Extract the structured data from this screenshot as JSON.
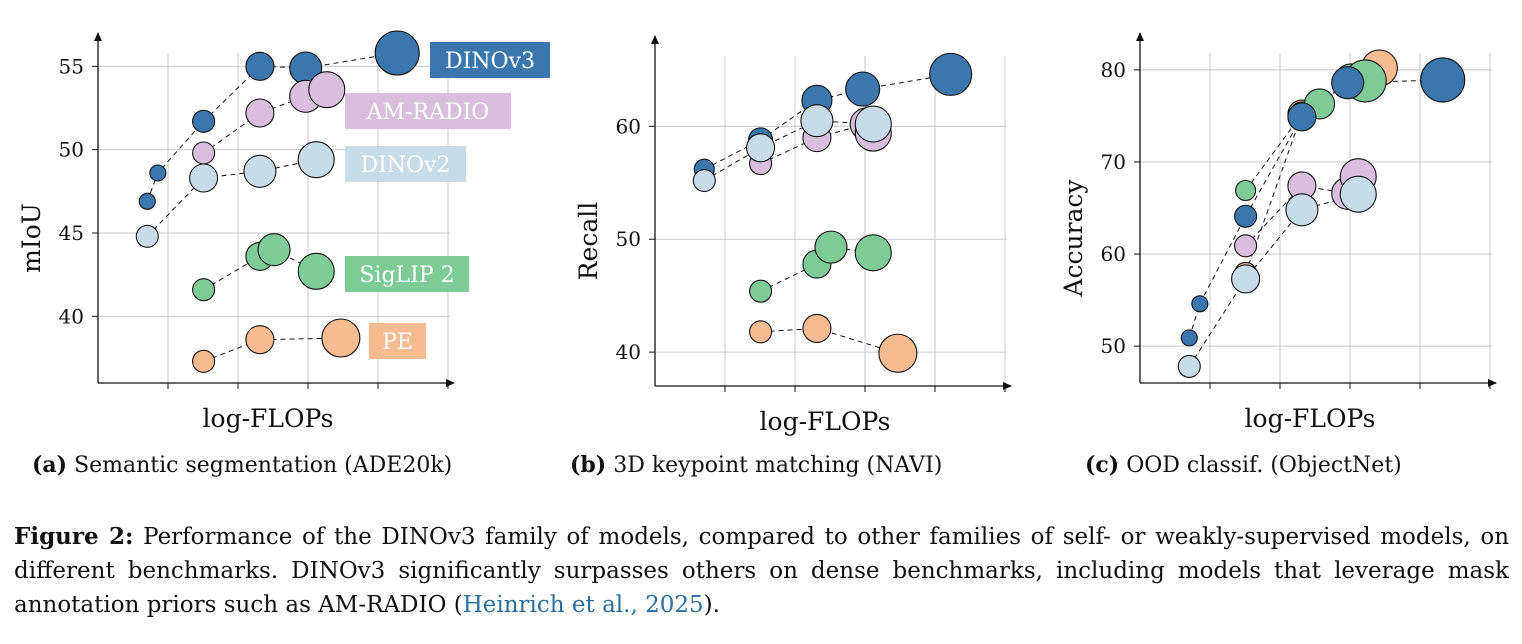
{
  "colors": {
    "DINOv3": "#3b77ad",
    "AM-RADIO": "#d9bedd",
    "DINOv2": "#c8dbe8",
    "SigLIP 2": "#7ecb98",
    "PE": "#f7bb91",
    "grid": "#c8c8c8",
    "cite": "#2a6fa0"
  },
  "chart_data": [
    {
      "type": "scatter",
      "xlabel": "log-FLOPs",
      "ylabel": "mIoU",
      "yticks": [
        40,
        45,
        50,
        55
      ],
      "ylim": [
        36,
        57
      ],
      "xlim": [
        0,
        5
      ],
      "grid": true,
      "series": [
        {
          "name": "DINOv3",
          "label_color": "#3b77ad",
          "label_text_color": "#ffffff",
          "points": [
            [
              0.7,
              46.9
            ],
            [
              0.85,
              48.6
            ],
            [
              1.5,
              51.7
            ],
            [
              2.3,
              55.0
            ],
            [
              2.95,
              54.9
            ],
            [
              4.25,
              55.8
            ]
          ]
        },
        {
          "name": "AM-RADIO",
          "label_color": "#d9bedd",
          "label_text_color": "#ffffff",
          "points": [
            [
              1.5,
              49.8
            ],
            [
              2.3,
              52.2
            ],
            [
              2.95,
              53.2
            ],
            [
              3.25,
              53.6
            ]
          ]
        },
        {
          "name": "DINOv2",
          "label_color": "#c8dbe8",
          "label_text_color": "#ffffff",
          "points": [
            [
              0.7,
              44.8
            ],
            [
              1.5,
              48.3
            ],
            [
              2.3,
              48.7
            ],
            [
              3.1,
              49.4
            ]
          ]
        },
        {
          "name": "SigLIP 2",
          "label_color": "#7ecb98",
          "label_text_color": "#ffffff",
          "points": [
            [
              1.5,
              41.6
            ],
            [
              2.3,
              43.6
            ],
            [
              2.5,
              44.0
            ],
            [
              3.1,
              42.7
            ]
          ]
        },
        {
          "name": "PE",
          "label_color": "#f7bb91",
          "label_text_color": "#ffffff",
          "points": [
            [
              1.5,
              37.3
            ],
            [
              2.3,
              38.6
            ],
            [
              3.45,
              38.7
            ]
          ]
        }
      ]
    },
    {
      "type": "scatter",
      "xlabel": "log-FLOPs",
      "ylabel": "Recall",
      "yticks": [
        40,
        50,
        60
      ],
      "ylim": [
        37,
        68
      ],
      "xlim": [
        0,
        5
      ],
      "grid": true,
      "series": [
        {
          "name": "DINOv3",
          "points": [
            [
              0.7,
              56.2
            ],
            [
              1.5,
              58.8
            ],
            [
              2.3,
              62.3
            ],
            [
              2.95,
              63.3
            ],
            [
              4.2,
              64.6
            ]
          ]
        },
        {
          "name": "AM-RADIO",
          "points": [
            [
              1.5,
              56.7
            ],
            [
              2.3,
              59.0
            ],
            [
              3.0,
              60.2
            ],
            [
              3.1,
              59.4
            ]
          ]
        },
        {
          "name": "DINOv2",
          "points": [
            [
              0.7,
              55.2
            ],
            [
              1.5,
              58.1
            ],
            [
              2.3,
              60.5
            ],
            [
              3.1,
              60.2
            ]
          ]
        },
        {
          "name": "SigLIP 2",
          "points": [
            [
              1.5,
              45.4
            ],
            [
              2.3,
              47.8
            ],
            [
              2.5,
              49.3
            ],
            [
              3.1,
              48.8
            ]
          ]
        },
        {
          "name": "PE",
          "points": [
            [
              1.5,
              41.8
            ],
            [
              2.3,
              42.1
            ],
            [
              3.45,
              39.9
            ]
          ]
        }
      ]
    },
    {
      "type": "scatter",
      "xlabel": "log-FLOPs",
      "ylabel": "Accuracy",
      "yticks": [
        50,
        60,
        70,
        80
      ],
      "ylim": [
        46,
        84
      ],
      "xlim": [
        0,
        5
      ],
      "grid": true,
      "series": [
        {
          "name": "PE",
          "points": [
            [
              1.5,
              57.9
            ],
            [
              2.3,
              75.2
            ],
            [
              3.0,
              78.8
            ],
            [
              3.4,
              80.2
            ]
          ]
        },
        {
          "name": "SigLIP 2",
          "points": [
            [
              1.5,
              66.9
            ],
            [
              2.3,
              75.2
            ],
            [
              2.55,
              76.3
            ],
            [
              3.0,
              78.8
            ],
            [
              3.2,
              78.8
            ]
          ]
        },
        {
          "name": "DINOv3",
          "points": [
            [
              0.7,
              50.9
            ],
            [
              0.85,
              54.6
            ],
            [
              1.5,
              64.1
            ],
            [
              2.3,
              74.9
            ],
            [
              2.95,
              78.6
            ],
            [
              4.3,
              78.9
            ]
          ]
        },
        {
          "name": "AM-RADIO",
          "points": [
            [
              1.5,
              60.9
            ],
            [
              2.3,
              67.4
            ],
            [
              2.95,
              66.6
            ],
            [
              3.1,
              68.4
            ]
          ]
        },
        {
          "name": "DINOv2",
          "points": [
            [
              0.7,
              47.8
            ],
            [
              1.5,
              57.3
            ],
            [
              2.3,
              64.8
            ],
            [
              3.1,
              66.5
            ]
          ]
        }
      ]
    }
  ],
  "captions": {
    "a_tag": "(a)",
    "a_text": " Semantic segmentation (ADE20k)",
    "b_tag": "(b)",
    "b_text": " 3D keypoint matching (NAVI)",
    "c_tag": "(c)",
    "c_text": " OOD classif. (ObjectNet)",
    "figure_tag": "Figure 2:",
    "figure_text": "  Performance of the DINOv3 family of models, compared to other families of self- or weakly-supervised models, on different benchmarks. DINOv3 significantly surpasses others on dense benchmarks, including models that leverage mask annotation priors such as AM-RADIO (",
    "citation": "Heinrich et al., 2025",
    "figure_end": ")."
  }
}
